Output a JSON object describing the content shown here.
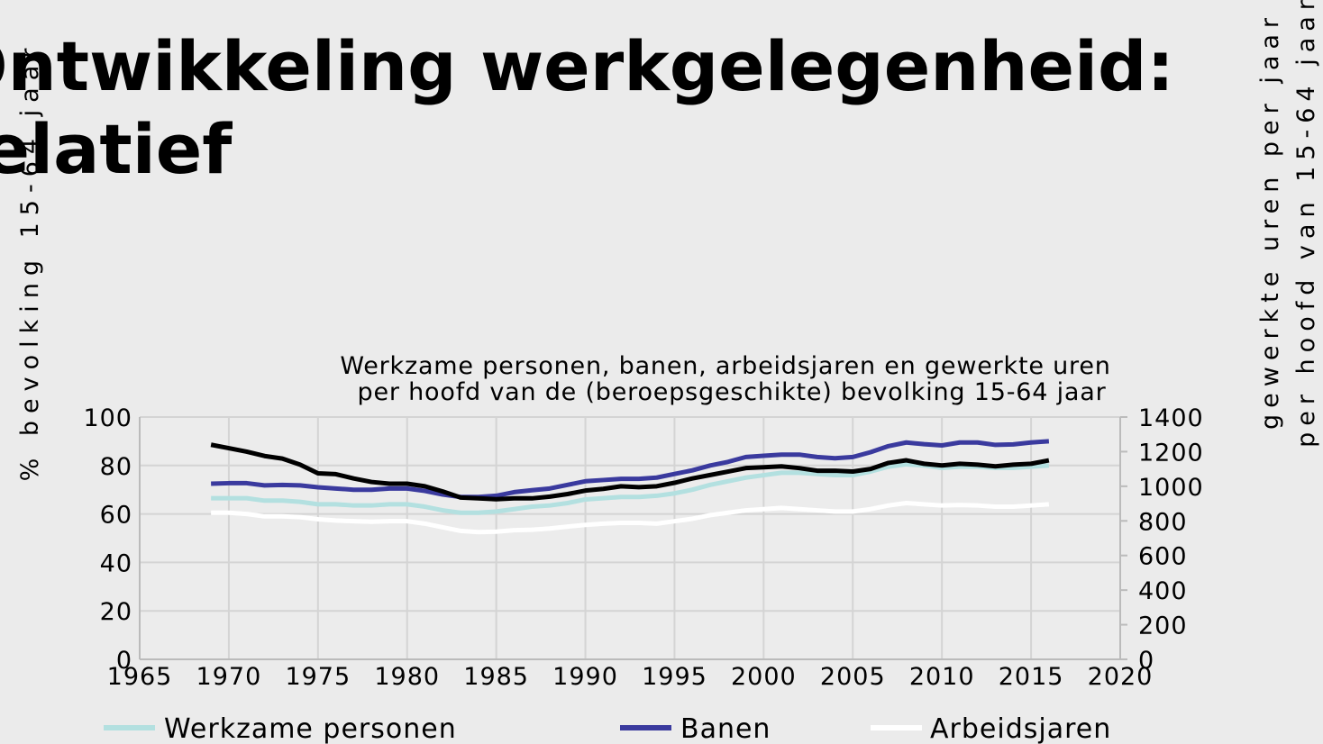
{
  "chart_data": {
    "type": "line",
    "title": "Ontwikkeling werkgelegenheid: relatief",
    "subtitle": [
      "Werkzame personen, banen, arbeidsjaren en gewerkte uren",
      "per hoofd van de (beroepsgeschikte) bevolking 15-64 jaar"
    ],
    "ylabel": "% bevolking 15-64 jaar",
    "y2label": [
      "gewerkte uren per jaar",
      "per hoofd van 15-64 jaar"
    ],
    "x": [
      1969,
      1970,
      1971,
      1972,
      1973,
      1974,
      1975,
      1976,
      1977,
      1978,
      1979,
      1980,
      1981,
      1982,
      1983,
      1984,
      1985,
      1986,
      1987,
      1988,
      1989,
      1990,
      1991,
      1992,
      1993,
      1994,
      1995,
      1996,
      1997,
      1998,
      1999,
      2000,
      2001,
      2002,
      2003,
      2004,
      2005,
      2006,
      2007,
      2008,
      2009,
      2010,
      2011,
      2012,
      2013,
      2014,
      2015,
      2016
    ],
    "series": [
      {
        "name": "Werkzame personen",
        "color": "#b3e0e0",
        "values": [
          66.5,
          66.5,
          66.5,
          65.5,
          65.5,
          65,
          64,
          64,
          63.5,
          63.5,
          64,
          64,
          63,
          61.5,
          60.5,
          60.5,
          61,
          62,
          63,
          63.5,
          64.5,
          66,
          66.5,
          67,
          67,
          67.5,
          68.5,
          70,
          72,
          73.5,
          75,
          76,
          77,
          77,
          76.5,
          76,
          76,
          77.5,
          79.5,
          80.5,
          80,
          79,
          79.5,
          79.5,
          79,
          79,
          79.5,
          80
        ]
      },
      {
        "name": "Banen",
        "color": "#3a3a9e",
        "values": [
          72.5,
          72.7,
          72.7,
          71.8,
          72,
          71.8,
          71,
          70.5,
          70,
          70,
          70.5,
          70.5,
          69.5,
          68,
          67,
          67,
          67.5,
          69,
          69.8,
          70.5,
          72,
          73.5,
          74,
          74.5,
          74.5,
          75,
          76.5,
          78,
          80,
          81.5,
          83.5,
          84,
          84.5,
          84.5,
          83.5,
          83,
          83.5,
          85.5,
          88,
          89.5,
          88.8,
          88.3,
          89.5,
          89.5,
          88.5,
          88.7,
          89.5,
          90
        ]
      },
      {
        "name": "Arbeidsjaren",
        "color": "#ffffff",
        "values": [
          60.5,
          60.5,
          60,
          59,
          59,
          58.7,
          57.8,
          57.3,
          57,
          56.8,
          57,
          57,
          56,
          54.5,
          53,
          52.5,
          52.7,
          53.3,
          53.5,
          54,
          54.8,
          55.5,
          56,
          56.3,
          56.3,
          56,
          57,
          58,
          59.5,
          60.5,
          61.5,
          62,
          62.5,
          62,
          61.5,
          61,
          61,
          62,
          63.5,
          64.5,
          64,
          63.5,
          63.7,
          63.5,
          63,
          63,
          63.5,
          64
        ]
      },
      {
        "color": "#000000",
        "axis": "y2",
        "values": [
          1240,
          1220,
          1200,
          1175,
          1160,
          1125,
          1075,
          1070,
          1045,
          1025,
          1015,
          1015,
          1000,
          970,
          935,
          930,
          925,
          930,
          930,
          940,
          955,
          975,
          985,
          1000,
          995,
          1000,
          1020,
          1045,
          1065,
          1085,
          1105,
          1110,
          1115,
          1105,
          1090,
          1090,
          1085,
          1100,
          1135,
          1150,
          1130,
          1120,
          1130,
          1125,
          1115,
          1125,
          1130,
          1150
        ]
      }
    ],
    "xlim": [
      1965,
      2020
    ],
    "xticks": [
      1965,
      1970,
      1975,
      1980,
      1985,
      1990,
      1995,
      2000,
      2005,
      2010,
      2015,
      2020
    ],
    "ylim": [
      0,
      100
    ],
    "yticks": [
      0,
      20,
      40,
      60,
      80,
      100
    ],
    "y2lim": [
      0,
      1400
    ],
    "y2ticks": [
      0,
      200,
      400,
      600,
      800,
      1000,
      1200,
      1400
    ],
    "grid": true,
    "legend": "bottom"
  }
}
